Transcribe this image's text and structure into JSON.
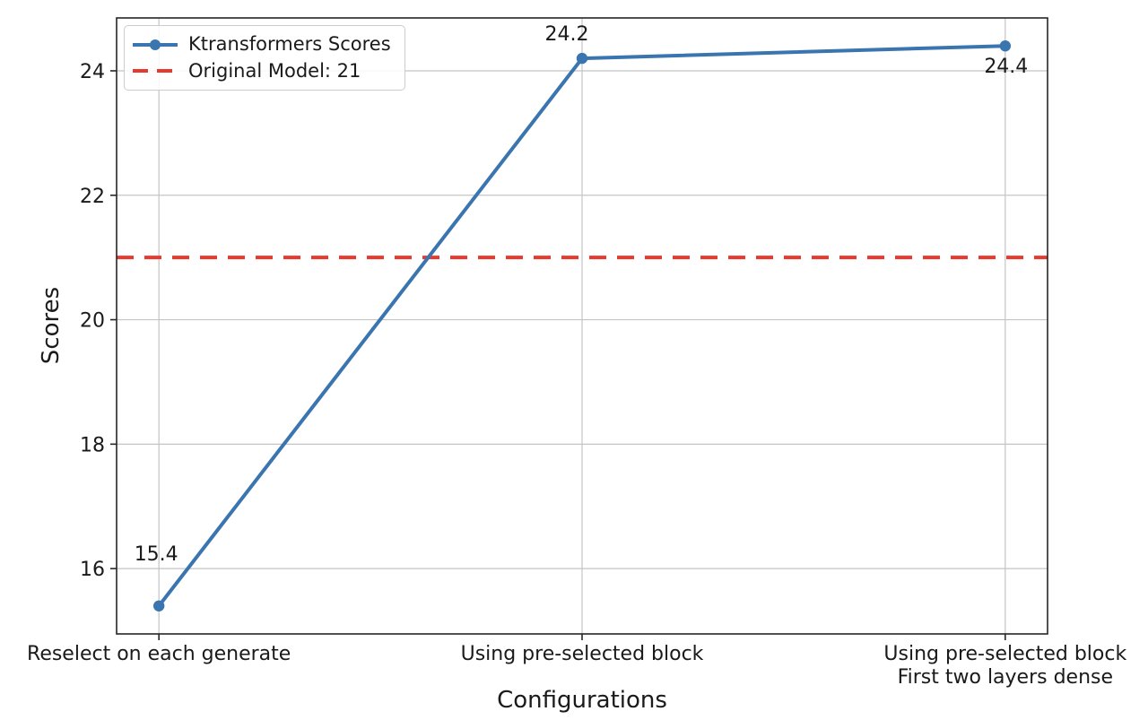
{
  "chart_data": {
    "type": "line",
    "title": "",
    "xlabel": "Configurations",
    "ylabel": "Scores",
    "categories": [
      "Reselect on each generate",
      "Using pre-selected block",
      "Using pre-selected block\nFirst two layers dense"
    ],
    "series": [
      {
        "name": "Ktransformers Scores",
        "values": [
          15.4,
          24.2,
          24.4
        ],
        "color": "#3a75af",
        "marker": "circle",
        "line_style": "solid"
      }
    ],
    "reference_line": {
      "label": "Original Model: 21",
      "value": 21,
      "color": "#e8392e",
      "line_style": "dashed"
    },
    "point_labels": [
      "15.4",
      "24.2",
      "24.4"
    ],
    "yticks": [
      "16",
      "18",
      "20",
      "22",
      "24"
    ],
    "ytick_values": [
      16,
      18,
      20,
      22,
      24
    ],
    "ylim": [
      14.95,
      24.85
    ],
    "xlim": [
      -0.1,
      2.1
    ],
    "grid": true,
    "legend_position": "upper-left",
    "colors": {
      "axis": "#262626",
      "grid": "#c4c4c4",
      "text": "#1a1a1a",
      "background": "#ffffff"
    }
  }
}
